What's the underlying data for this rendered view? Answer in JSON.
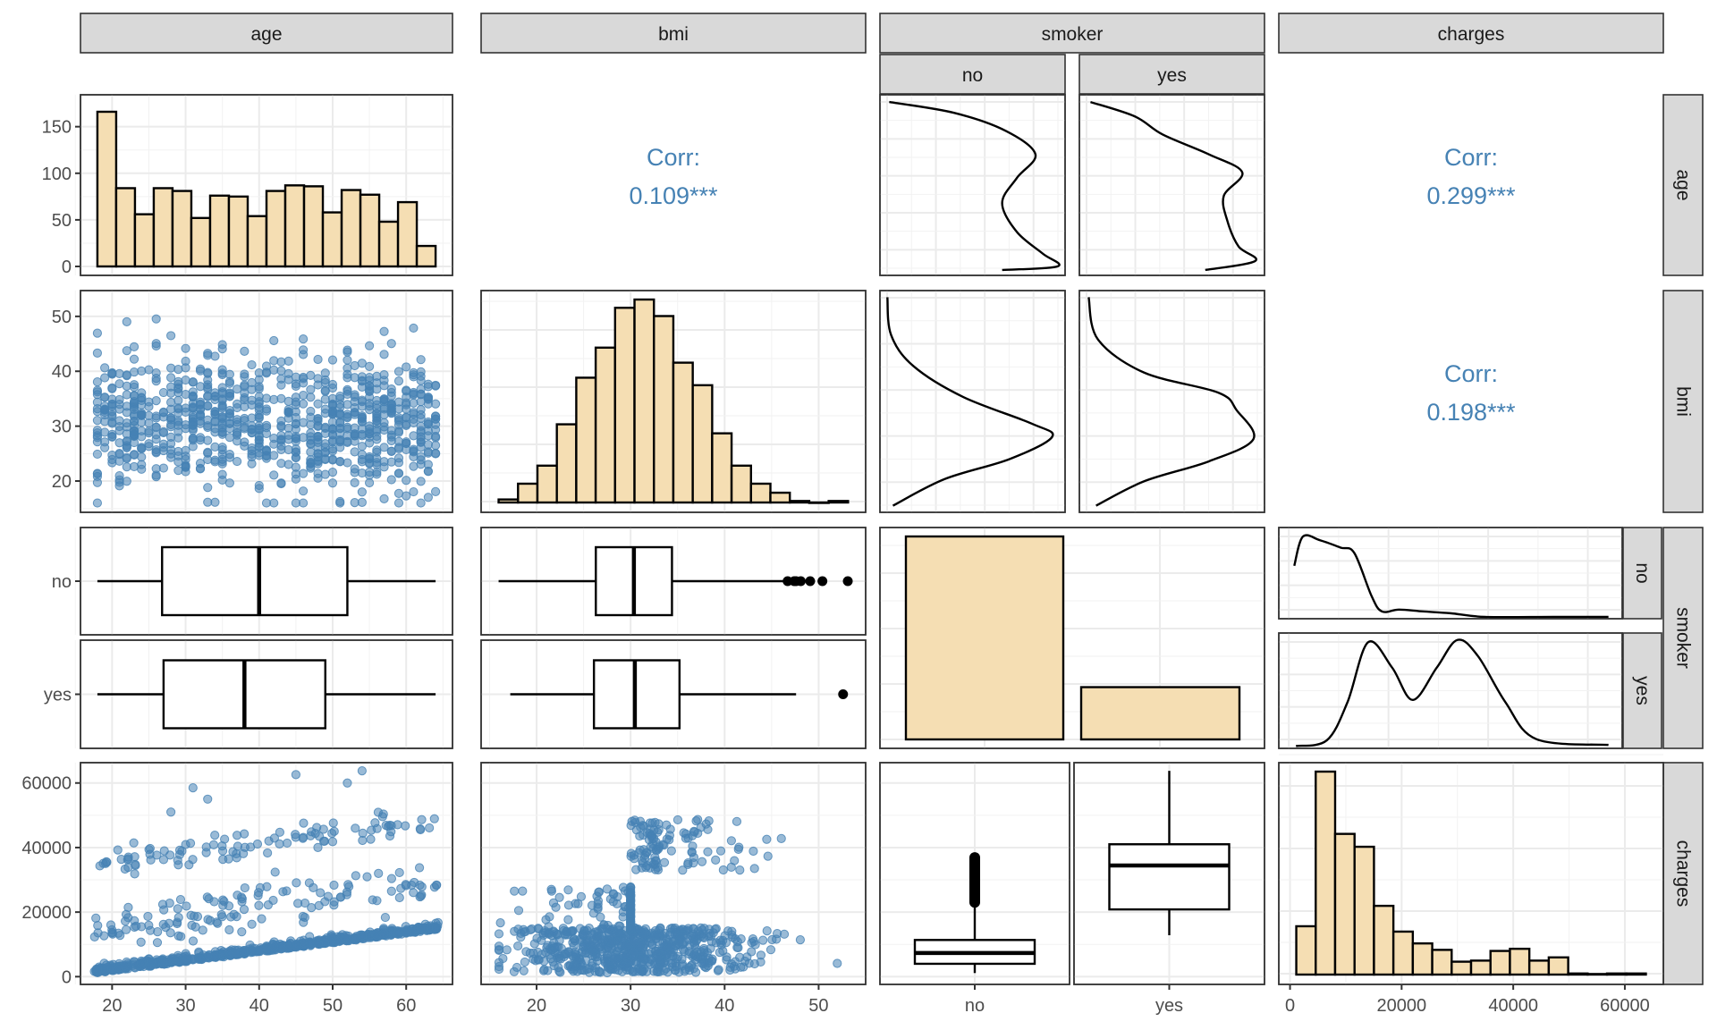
{
  "chart_data": {
    "type": "pairs-matrix",
    "title": "",
    "variables": [
      "age",
      "bmi",
      "smoker",
      "charges"
    ],
    "column_strips": [
      "age",
      "bmi",
      "smoker",
      "charges"
    ],
    "row_strips": [
      "age",
      "bmi",
      "smoker",
      "charges"
    ],
    "smoker_levels": [
      "no",
      "yes"
    ],
    "colors": {
      "point": "#4682b4",
      "bar_fill": "#f5deb3",
      "strip_fill": "#d9d9d9",
      "corr_text": "#4682b4"
    },
    "correlations": [
      {
        "pair": [
          "age",
          "bmi"
        ],
        "label": "Corr:",
        "value": "0.109***"
      },
      {
        "pair": [
          "age",
          "charges"
        ],
        "label": "Corr:",
        "value": "0.299***"
      },
      {
        "pair": [
          "bmi",
          "charges"
        ],
        "label": "Corr:",
        "value": "0.198***"
      }
    ],
    "age_histogram": {
      "type": "bar",
      "bins": 18,
      "x_range": [
        18,
        64
      ],
      "values": [
        166,
        84,
        56,
        84,
        81,
        52,
        76,
        75,
        54,
        81,
        87,
        86,
        58,
        82,
        77,
        48,
        69,
        22
      ],
      "yticks": [
        "0",
        "50",
        "100",
        "150"
      ]
    },
    "bmi_histogram": {
      "type": "bar",
      "bins": 18,
      "x_range": [
        15.96,
        53.13
      ],
      "values": [
        4,
        25,
        49,
        104,
        166,
        206,
        259,
        270,
        248,
        186,
        156,
        92,
        49,
        25,
        13,
        2,
        0,
        2
      ]
    },
    "smoker_bar": {
      "type": "bar",
      "categories": [
        "no",
        "yes"
      ],
      "values": [
        1064,
        274
      ]
    },
    "charges_histogram": {
      "type": "bar",
      "bins": 18,
      "x_range": [
        1122,
        63770
      ],
      "values": [
        90,
        378,
        262,
        238,
        128,
        80,
        58,
        46,
        24,
        26,
        44,
        48,
        26,
        32,
        2,
        1,
        2,
        2
      ]
    },
    "age_by_smoker_box": [
      {
        "group": "no",
        "min": 18,
        "q1": 26.8,
        "median": 40,
        "q3": 52,
        "max": 64
      },
      {
        "group": "yes",
        "min": 18,
        "q1": 27,
        "median": 38,
        "q3": 49,
        "max": 64
      }
    ],
    "bmi_by_smoker_box": [
      {
        "group": "no",
        "min": 15.96,
        "q1": 26.3,
        "median": 30.35,
        "q3": 34.4,
        "max": 46.5,
        "outliers": [
          46.7,
          47.4,
          47.6,
          48.1,
          49.1,
          50.4,
          53.1
        ]
      },
      {
        "group": "yes",
        "min": 17.2,
        "q1": 26.1,
        "median": 30.45,
        "q3": 35.2,
        "max": 47.6,
        "outliers": [
          52.6
        ]
      }
    ],
    "charges_by_smoker_box": [
      {
        "group": "no",
        "min": 1122,
        "q1": 3986,
        "median": 7345,
        "q3": 11363,
        "max": 22800,
        "outlier_range": [
          23000,
          36900
        ]
      },
      {
        "group": "yes",
        "min": 12829,
        "q1": 20826,
        "median": 34456,
        "q3": 41019,
        "max": 63770
      }
    ],
    "axes": {
      "age": {
        "ticks": [
          "20",
          "30",
          "40",
          "50",
          "60"
        ],
        "range": [
          15.7,
          66.3
        ]
      },
      "bmi": {
        "ticks": [
          "20",
          "30",
          "40",
          "50"
        ],
        "range": [
          14.1,
          55.0
        ],
        "yticks": [
          "20",
          "30",
          "40",
          "50"
        ]
      },
      "smoker": {
        "ticks": [
          "no",
          "yes"
        ]
      },
      "charges": {
        "ticks": [
          "0",
          "20000",
          "40000",
          "60000"
        ],
        "range": [
          -2010,
          66900
        ]
      }
    },
    "scatter_descriptions": {
      "age_vs_bmi": "uniform cloud, bmi 16-53 across ages 18-64",
      "age_vs_charges": "three rising bands: ~1000-15000, ~12000-30000, ~33000-50000 plus few outliers to 63770",
      "bmi_vs_charges": "dense low band 1000-15000 across bmi 16-53; high band 35000-50000 for bmi > 30"
    },
    "grid": true,
    "legend": "none"
  }
}
